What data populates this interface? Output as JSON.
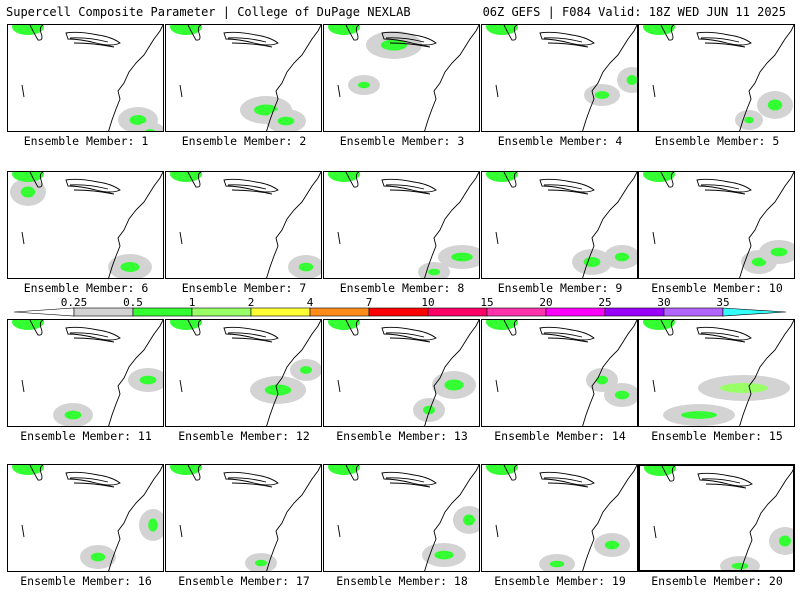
{
  "header": {
    "left_title": "Supercell Composite Parameter | College of DuPage NEXLAB",
    "right_title": "06Z GEFS | F084 Valid: 18Z WED JUN 11 2025"
  },
  "members": [
    {
      "label": "Ensemble Member: 1"
    },
    {
      "label": "Ensemble Member: 2"
    },
    {
      "label": "Ensemble Member: 3"
    },
    {
      "label": "Ensemble Member: 4"
    },
    {
      "label": "Ensemble Member: 5"
    },
    {
      "label": "Ensemble Member: 6"
    },
    {
      "label": "Ensemble Member: 7"
    },
    {
      "label": "Ensemble Member: 8"
    },
    {
      "label": "Ensemble Member: 9"
    },
    {
      "label": "Ensemble Member: 10"
    },
    {
      "label": "Ensemble Member: 11"
    },
    {
      "label": "Ensemble Member: 12"
    },
    {
      "label": "Ensemble Member: 13"
    },
    {
      "label": "Ensemble Member: 14"
    },
    {
      "label": "Ensemble Member: 15"
    },
    {
      "label": "Ensemble Member: 16"
    },
    {
      "label": "Ensemble Member: 17"
    },
    {
      "label": "Ensemble Member: 18"
    },
    {
      "label": "Ensemble Member: 19"
    },
    {
      "label": "Ensemble Member: 20"
    }
  ],
  "legend": {
    "ticks": [
      "0.25",
      "0.5",
      "1",
      "2",
      "4",
      "7",
      "10",
      "15",
      "20",
      "25",
      "30",
      "35"
    ],
    "colors": [
      "#d3d3d3",
      "#33ff33",
      "#99ff66",
      "#ffff33",
      "#ff8c1a",
      "#ff0000",
      "#ff0066",
      "#ff33aa",
      "#ff00ff",
      "#9900ff",
      "#b266ff",
      "#33ffff"
    ]
  }
}
